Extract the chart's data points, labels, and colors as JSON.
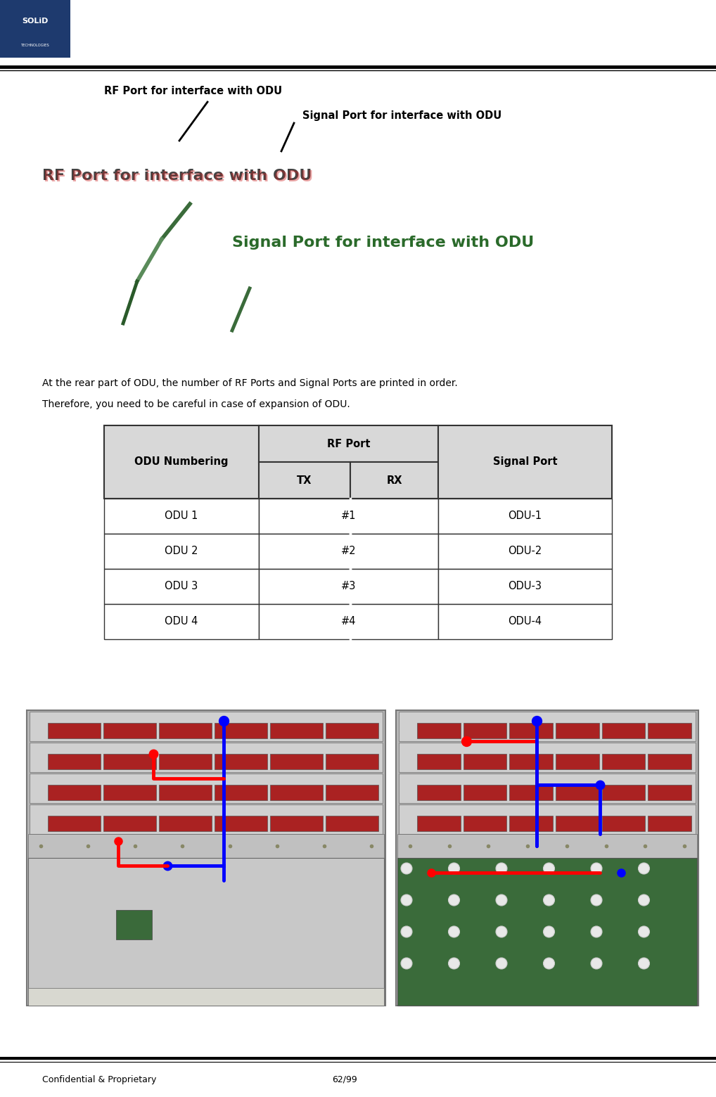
{
  "page_width": 10.18,
  "page_height": 15.6,
  "background_color": "#ffffff",
  "logo_color": "#1e3a6e",
  "top_annotation1": "RF Port for interface with ODU",
  "top_annotation2": "Signal Port for interface with ODU",
  "rf_label_text": "RF Port for interface with ODU",
  "signal_label_text": "Signal Port for interface with ODU",
  "body_text_line1": "At the rear part of ODU, the number of RF Ports and Signal Ports are printed in order.",
  "body_text_line2": "Therefore, you need to be careful in case of expansion of ODU.",
  "table_header1": "ODU Numbering",
  "table_header2": "RF Port",
  "table_header3": "Signal Port",
  "table_subhdr_tx": "TX",
  "table_subhdr_rx": "RX",
  "table_rows": [
    [
      "ODU 1",
      "#1",
      "ODU-1"
    ],
    [
      "ODU 2",
      "#2",
      "ODU-2"
    ],
    [
      "ODU 3",
      "#3",
      "ODU-3"
    ],
    [
      "ODU 4",
      "#4",
      "ODU-4"
    ]
  ],
  "footer_left": "Confidential & Proprietary",
  "footer_right": "62/99",
  "table_bg": "#d8d8d8",
  "table_border": "#333333",
  "rack_bg": "#c8c8c8",
  "rack_unit_bg": "#d4d4d4",
  "rack_unit_border": "#999999",
  "board_left_bg": "#c0c0c0",
  "board_right_bg": "#3a6b3a"
}
